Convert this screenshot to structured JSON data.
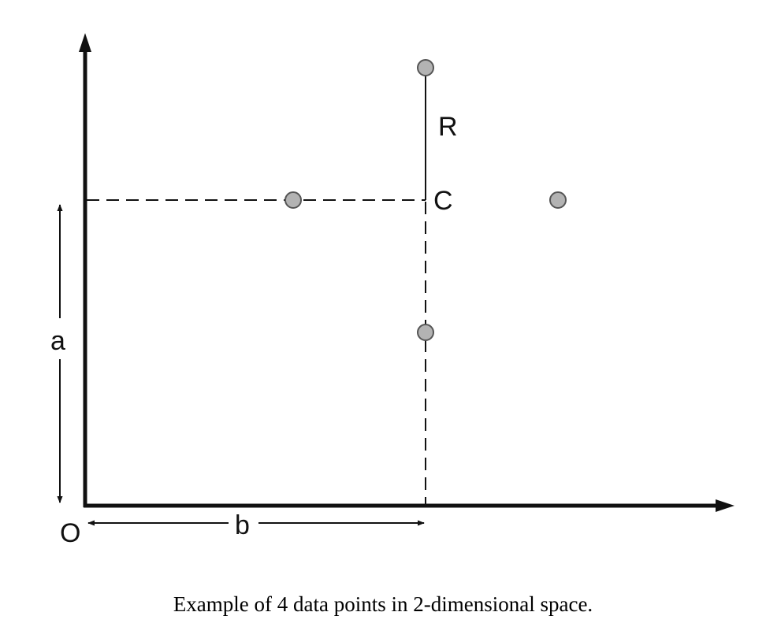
{
  "labels": {
    "origin": "O",
    "a": "a",
    "b": "b",
    "center": "C",
    "radius": "R"
  },
  "points": [
    {
      "name": "point-top"
    },
    {
      "name": "point-left"
    },
    {
      "name": "point-right"
    },
    {
      "name": "point-bottom"
    }
  ],
  "colors": {
    "line": "#111111",
    "point_fill": "#b3b3b3",
    "point_stroke": "#555555"
  },
  "caption": "Example of 4 data points in 2-dimensional space."
}
